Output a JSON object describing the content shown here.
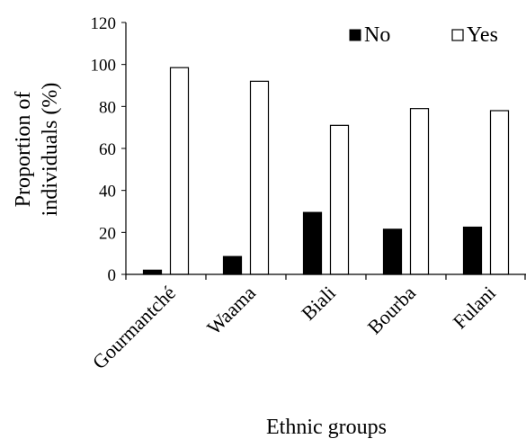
{
  "chart_data": {
    "type": "bar",
    "categories": [
      "Gourmantché",
      "Waama",
      "Biali",
      "Bourba",
      "Fulani"
    ],
    "series": [
      {
        "name": "No",
        "values": [
          2,
          8.5,
          29.5,
          21.5,
          22.5
        ],
        "color": "#000000"
      },
      {
        "name": "Yes",
        "values": [
          98.5,
          92,
          71,
          79,
          78
        ],
        "color": "#ffffff"
      }
    ],
    "ylabel_lines": [
      "Proportion of",
      "individuals (%)"
    ],
    "xlabel": "Ethnic groups",
    "ylim": [
      0,
      120
    ],
    "yticks": [
      0,
      20,
      40,
      60,
      80,
      100,
      120
    ],
    "grid": false,
    "legend_position": "top-right"
  }
}
